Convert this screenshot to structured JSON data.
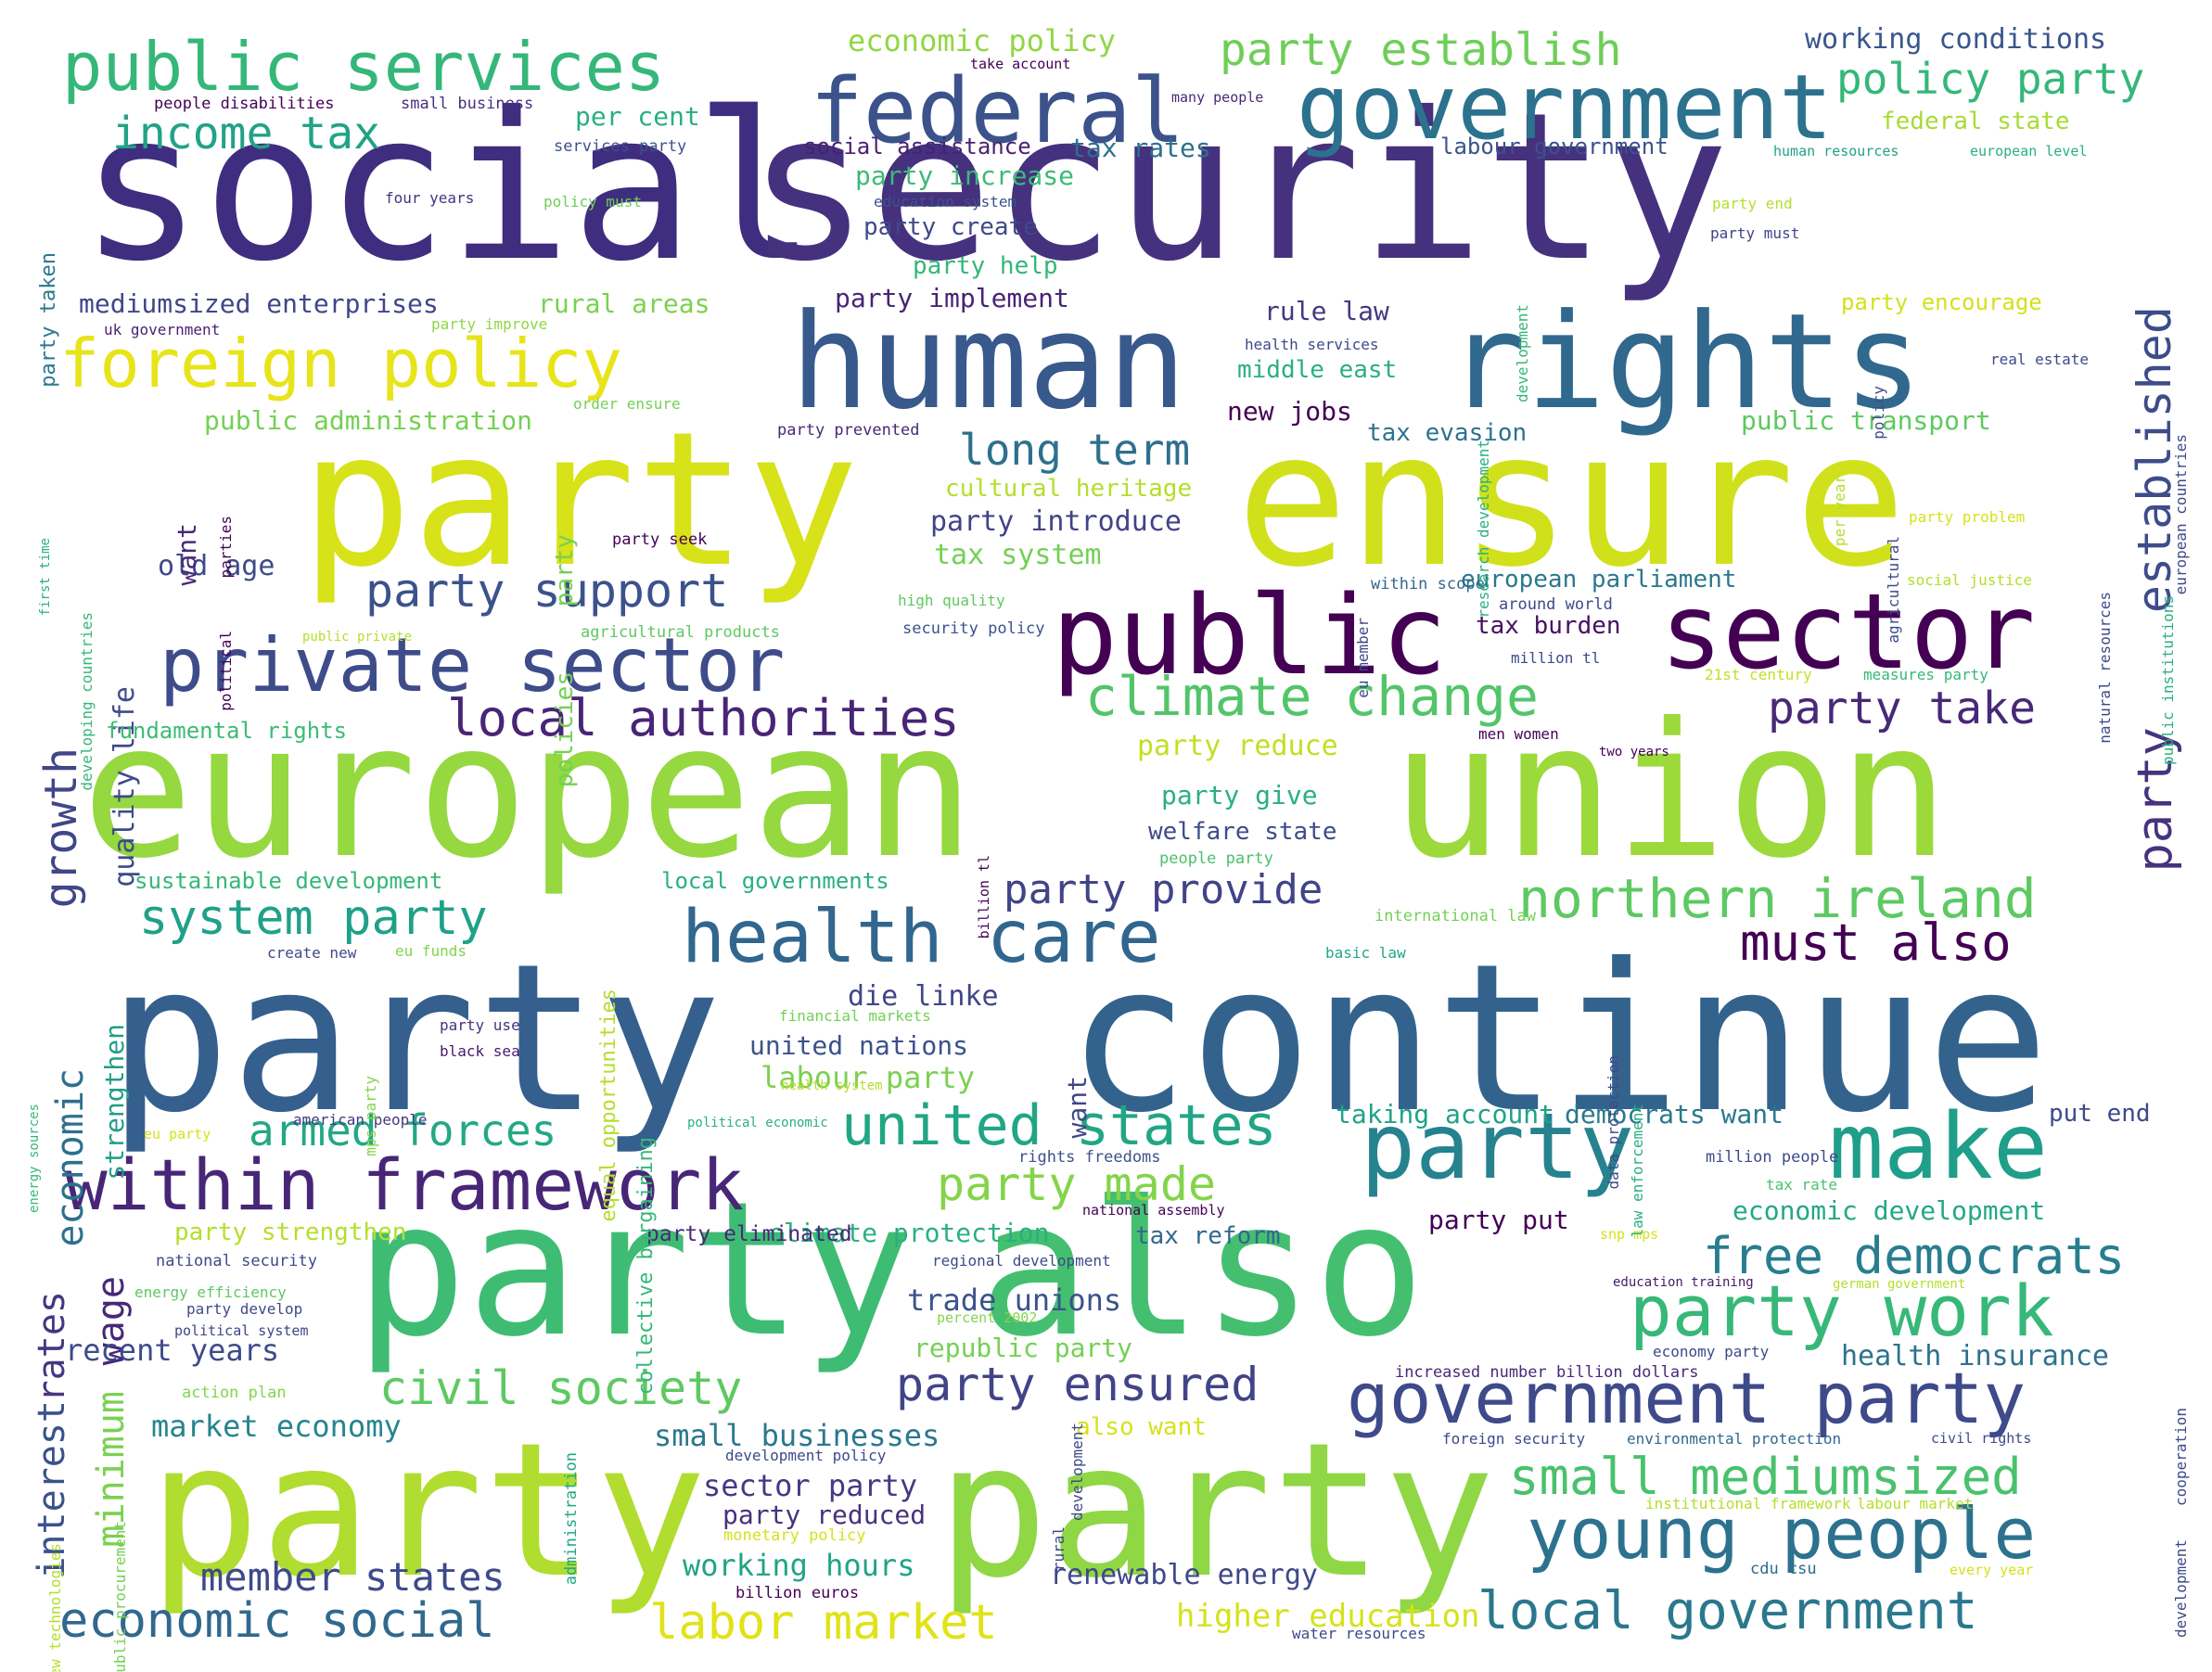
{
  "words": [
    {
      "text": "social",
      "color": "#3f2d7f"
    },
    {
      "text": "security",
      "color": "#46317e"
    },
    {
      "text": "party",
      "color": "#d7e219"
    },
    {
      "text": "ensure",
      "color": "#d0e11c"
    },
    {
      "text": "european",
      "color": "#95d840"
    },
    {
      "text": "union",
      "color": "#9cd93b"
    },
    {
      "text": "party",
      "color": "#355f8d"
    },
    {
      "text": "continue",
      "color": "#33638d"
    },
    {
      "text": "party",
      "color": "#3fbc73"
    },
    {
      "text": "also",
      "color": "#44bf70"
    },
    {
      "text": "party",
      "color": "#b0dd2f"
    },
    {
      "text": "party",
      "color": "#8fd744"
    },
    {
      "text": "human",
      "color": "#38598c"
    },
    {
      "text": "rights",
      "color": "#31688e"
    },
    {
      "text": "public",
      "color": "#440154"
    },
    {
      "text": "sector",
      "color": "#440154"
    },
    {
      "text": "federal",
      "color": "#3b528b"
    },
    {
      "text": "government",
      "color": "#2c728e"
    },
    {
      "text": "public services",
      "color": "#35b779"
    },
    {
      "text": "foreign policy",
      "color": "#e7e419"
    },
    {
      "text": "private sector",
      "color": "#3e4c8a"
    },
    {
      "text": "health care",
      "color": "#31668e"
    },
    {
      "text": "party",
      "color": "#26828e"
    },
    {
      "text": "make",
      "color": "#1f9e89"
    },
    {
      "text": "within framework",
      "color": "#482677"
    },
    {
      "text": "government party",
      "color": "#3e4a89"
    },
    {
      "text": "young people",
      "color": "#2c728e"
    },
    {
      "text": "climate change",
      "color": "#52c569"
    },
    {
      "text": "northern ireland",
      "color": "#5ec962"
    },
    {
      "text": "party work",
      "color": "#37b878"
    },
    {
      "text": "free democrats",
      "color": "#287d8e"
    },
    {
      "text": "local government",
      "color": "#2a788e"
    },
    {
      "text": "small mediumsized",
      "color": "#4ac16d"
    },
    {
      "text": "united states",
      "color": "#21a685"
    },
    {
      "text": "party made",
      "color": "#84d44b"
    },
    {
      "text": "party ensured",
      "color": "#414487"
    },
    {
      "text": "civil society",
      "color": "#5ec962"
    },
    {
      "text": "labor market",
      "color": "#e0e317"
    },
    {
      "text": "economic social",
      "color": "#31688e"
    },
    {
      "text": "armed forces",
      "color": "#22a884"
    },
    {
      "text": "local authorities",
      "color": "#482576"
    },
    {
      "text": "party support",
      "color": "#3b528b"
    },
    {
      "text": "income tax",
      "color": "#20a386"
    },
    {
      "text": "party establish",
      "color": "#6ece58"
    },
    {
      "text": "policy party",
      "color": "#35b779"
    },
    {
      "text": "economic policy",
      "color": "#90d743"
    },
    {
      "text": "working conditions",
      "color": "#39568c"
    },
    {
      "text": "established",
      "color": "#3e4c8a"
    },
    {
      "text": "party",
      "color": "#46337e"
    },
    {
      "text": "party take",
      "color": "#482878"
    },
    {
      "text": "must also",
      "color": "#440154"
    },
    {
      "text": "party provide",
      "color": "#414487"
    },
    {
      "text": "system party",
      "color": "#1fa188"
    },
    {
      "text": "long term",
      "color": "#2d708e"
    },
    {
      "text": "growth",
      "color": "#404688"
    },
    {
      "text": "economic",
      "color": "#2d708e"
    },
    {
      "text": "minimum",
      "color": "#7ad151"
    },
    {
      "text": "interest",
      "color": "#3b528b"
    },
    {
      "text": "wage",
      "color": "#482878"
    },
    {
      "text": "rates",
      "color": "#453781"
    },
    {
      "text": "member states",
      "color": "#3e4a89"
    },
    {
      "text": "recent years",
      "color": "#3e4a89"
    },
    {
      "text": "market economy",
      "color": "#25858e"
    },
    {
      "text": "small businesses",
      "color": "#2a788e"
    },
    {
      "text": "sector party",
      "color": "#443983"
    },
    {
      "text": "party reduced",
      "color": "#46327e"
    },
    {
      "text": "working hours",
      "color": "#20a486"
    },
    {
      "text": "renewable energy",
      "color": "#3f4889"
    },
    {
      "text": "higher education",
      "color": "#d5e21a"
    },
    {
      "text": "trade unions",
      "color": "#3b528b"
    },
    {
      "text": "republic party",
      "color": "#75d054"
    },
    {
      "text": "health insurance",
      "color": "#2c728e"
    },
    {
      "text": "economic development",
      "color": "#22a884"
    },
    {
      "text": "party put",
      "color": "#440154"
    },
    {
      "text": "democrats want",
      "color": "#2a788e"
    },
    {
      "text": "put end",
      "color": "#3e4a89"
    },
    {
      "text": "taking account",
      "color": "#20a386"
    },
    {
      "text": "labour party",
      "color": "#7ad151"
    },
    {
      "text": "united nations",
      "color": "#3b528b"
    },
    {
      "text": "die linke",
      "color": "#404688"
    },
    {
      "text": "party give",
      "color": "#2ab07f"
    },
    {
      "text": "welfare state",
      "color": "#3e4c8a"
    },
    {
      "text": "party reduce",
      "color": "#c2df23"
    },
    {
      "text": "tax burden",
      "color": "#470e61"
    },
    {
      "text": "european parliament",
      "color": "#2a788e"
    },
    {
      "text": "tax system",
      "color": "#73d056"
    },
    {
      "text": "party introduce",
      "color": "#414487"
    },
    {
      "text": "cultural heritage",
      "color": "#b5de2b"
    },
    {
      "text": "new jobs",
      "color": "#440154"
    },
    {
      "text": "tax evasion",
      "color": "#2c728e"
    },
    {
      "text": "public transport",
      "color": "#5ec962"
    },
    {
      "text": "middle east",
      "color": "#2ab07f"
    },
    {
      "text": "rule law",
      "color": "#453781"
    },
    {
      "text": "party implement",
      "color": "#482475"
    },
    {
      "text": "party help",
      "color": "#34b679"
    },
    {
      "text": "party create",
      "color": "#3e4989"
    },
    {
      "text": "party increase",
      "color": "#3cbb75"
    },
    {
      "text": "social assistance",
      "color": "#482173"
    },
    {
      "text": "tax rates",
      "color": "#2d708e"
    },
    {
      "text": "labour government",
      "color": "#3b528b"
    },
    {
      "text": "federal state",
      "color": "#a8db34"
    },
    {
      "text": "per cent",
      "color": "#2ab07f"
    },
    {
      "text": "mediumsized enterprises",
      "color": "#404688"
    },
    {
      "text": "rural areas",
      "color": "#7ad151"
    },
    {
      "text": "public administration",
      "color": "#75d054"
    },
    {
      "text": "old age",
      "color": "#3e4a89"
    },
    {
      "text": "quality life",
      "color": "#3e4a89"
    },
    {
      "text": "want",
      "color": "#482878"
    },
    {
      "text": "fundamental rights",
      "color": "#3cbb75"
    },
    {
      "text": "sustainable development",
      "color": "#35b779"
    },
    {
      "text": "local governments",
      "color": "#2ab07f"
    },
    {
      "text": "strengthen",
      "color": "#1f9e89"
    },
    {
      "text": "party strengthen",
      "color": "#b5de2b"
    },
    {
      "text": "climate protection",
      "color": "#2ab07f"
    },
    {
      "text": "tax reform",
      "color": "#31688e"
    },
    {
      "text": "want",
      "color": "#404688"
    },
    {
      "text": "party encourage",
      "color": "#d2e21b"
    },
    {
      "text": "people disabilities",
      "color": "#440154"
    },
    {
      "text": "small business",
      "color": "#46307e"
    },
    {
      "text": "services party",
      "color": "#3b528b"
    },
    {
      "text": "four years",
      "color": "#46337e"
    },
    {
      "text": "policy must",
      "color": "#6ece58"
    },
    {
      "text": "education system",
      "color": "#3b528b"
    },
    {
      "text": "uk government",
      "color": "#481f70"
    },
    {
      "text": "party improve",
      "color": "#90d743"
    },
    {
      "text": "order ensure",
      "color": "#75d054"
    },
    {
      "text": "party prevented",
      "color": "#482878"
    },
    {
      "text": "party seek",
      "color": "#440154"
    },
    {
      "text": "high quality",
      "color": "#5ec962"
    },
    {
      "text": "around world",
      "color": "#3e4a89"
    },
    {
      "text": "agricultural products",
      "color": "#5ec962"
    },
    {
      "text": "security policy",
      "color": "#3b528b"
    },
    {
      "text": "within scope",
      "color": "#31688e"
    },
    {
      "text": "million tl",
      "color": "#3e4a89"
    },
    {
      "text": "21st century",
      "color": "#c2df23"
    },
    {
      "text": "measures party",
      "color": "#35b779"
    },
    {
      "text": "social justice",
      "color": "#b5de2b"
    },
    {
      "text": "party problem",
      "color": "#d5e21a"
    },
    {
      "text": "per year",
      "color": "#b5de2b"
    },
    {
      "text": "men women",
      "color": "#440154"
    },
    {
      "text": "two years",
      "color": "#440154"
    },
    {
      "text": "people party",
      "color": "#4ac16d"
    },
    {
      "text": "international law",
      "color": "#73d056"
    },
    {
      "text": "basic law",
      "color": "#22a884"
    },
    {
      "text": "eu funds",
      "color": "#84d44b"
    },
    {
      "text": "create new",
      "color": "#3e4a89"
    },
    {
      "text": "party use",
      "color": "#46327e"
    },
    {
      "text": "black sea",
      "color": "#481a6c"
    },
    {
      "text": "financial markets",
      "color": "#73d056"
    },
    {
      "text": "rights freedoms",
      "color": "#3b528b"
    },
    {
      "text": "million people",
      "color": "#3e4a89"
    },
    {
      "text": "tax rate",
      "color": "#4ac16d"
    },
    {
      "text": "american people",
      "color": "#453781"
    },
    {
      "text": "political economic",
      "color": "#2ab07f"
    },
    {
      "text": "national assembly",
      "color": "#440154"
    },
    {
      "text": "regional development",
      "color": "#3e4a89"
    },
    {
      "text": "snp mps",
      "color": "#d5e21a"
    },
    {
      "text": "national security",
      "color": "#3e4a89"
    },
    {
      "text": "party develop",
      "color": "#3e4a89"
    },
    {
      "text": "energy efficiency",
      "color": "#5ec962"
    },
    {
      "text": "political system",
      "color": "#414487"
    },
    {
      "text": "education training",
      "color": "#481a6c"
    },
    {
      "text": "german government",
      "color": "#b5de2b"
    },
    {
      "text": "percent 2002",
      "color": "#84d44b"
    },
    {
      "text": "economy party",
      "color": "#3e4a89"
    },
    {
      "text": "increased number",
      "color": "#482878"
    },
    {
      "text": "billion dollars",
      "color": "#482878"
    },
    {
      "text": "action plan",
      "color": "#84d44b"
    },
    {
      "text": "also want",
      "color": "#d5e21a"
    },
    {
      "text": "development policy",
      "color": "#3e4a89"
    },
    {
      "text": "foreign security",
      "color": "#3e4a89"
    },
    {
      "text": "environmental protection",
      "color": "#31688e"
    },
    {
      "text": "civil rights",
      "color": "#3e4a89"
    },
    {
      "text": "institutional framework",
      "color": "#b5de2b"
    },
    {
      "text": "labour market",
      "color": "#b5de2b"
    },
    {
      "text": "monetary policy",
      "color": "#d5e21a"
    },
    {
      "text": "cdu csu",
      "color": "#31688e"
    },
    {
      "text": "every year",
      "color": "#d5e21a"
    },
    {
      "text": "billion euros",
      "color": "#440154"
    },
    {
      "text": "water resources",
      "color": "#3e4a89"
    },
    {
      "text": "eu party",
      "color": "#d5e21a"
    },
    {
      "text": "party eliminated",
      "color": "#482878"
    },
    {
      "text": "take account",
      "color": "#440154"
    },
    {
      "text": "many people",
      "color": "#482878"
    },
    {
      "text": "human resources",
      "color": "#20a386"
    },
    {
      "text": "european level",
      "color": "#2ab07f"
    },
    {
      "text": "party end",
      "color": "#b5de2b"
    },
    {
      "text": "party must",
      "color": "#414487"
    },
    {
      "text": "real estate",
      "color": "#3e4a89"
    },
    {
      "text": "health services",
      "color": "#3e4a89"
    },
    {
      "text": "party taken",
      "color": "#2a788e"
    },
    {
      "text": "first time",
      "color": "#2ab07f"
    },
    {
      "text": "developing countries",
      "color": "#35b779"
    },
    {
      "text": "political",
      "color": "#440154"
    },
    {
      "text": "parties",
      "color": "#440154"
    },
    {
      "text": "party",
      "color": "#75d054"
    },
    {
      "text": "policies",
      "color": "#75d054"
    },
    {
      "text": "public private",
      "color": "#b5de2b"
    },
    {
      "text": "energy sources",
      "color": "#35b779"
    },
    {
      "text": "mps party",
      "color": "#84d44b"
    },
    {
      "text": "collective bargaining",
      "color": "#35b779"
    },
    {
      "text": "equal opportunities",
      "color": "#b5de2b"
    },
    {
      "text": "administration",
      "color": "#22a884"
    },
    {
      "text": "billion tl",
      "color": "#440154"
    },
    {
      "text": "data protection",
      "color": "#3e4a89"
    },
    {
      "text": "law enforcement",
      "color": "#2ab07f"
    },
    {
      "text": "development",
      "color": "#3e4a89"
    },
    {
      "text": "rural",
      "color": "#3e4a89"
    },
    {
      "text": "development",
      "color": "#35b779"
    },
    {
      "text": "cooperation",
      "color": "#3e4a89"
    },
    {
      "text": "development",
      "color": "#3e4a89"
    },
    {
      "text": "research development",
      "color": "#2ab07f"
    },
    {
      "text": "policy",
      "color": "#3e4a89"
    },
    {
      "text": "agricultural",
      "color": "#3e4a89"
    },
    {
      "text": "natural resources",
      "color": "#3e4a89"
    },
    {
      "text": "public institutions",
      "color": "#2ab07f"
    },
    {
      "text": "european countries",
      "color": "#3e4a89"
    },
    {
      "text": "eu member",
      "color": "#3e4a89"
    },
    {
      "text": "public procurement",
      "color": "#75d054"
    },
    {
      "text": "new technologies",
      "color": "#b5de2b"
    },
    {
      "text": "health system",
      "color": "#b5de2b"
    }
  ]
}
